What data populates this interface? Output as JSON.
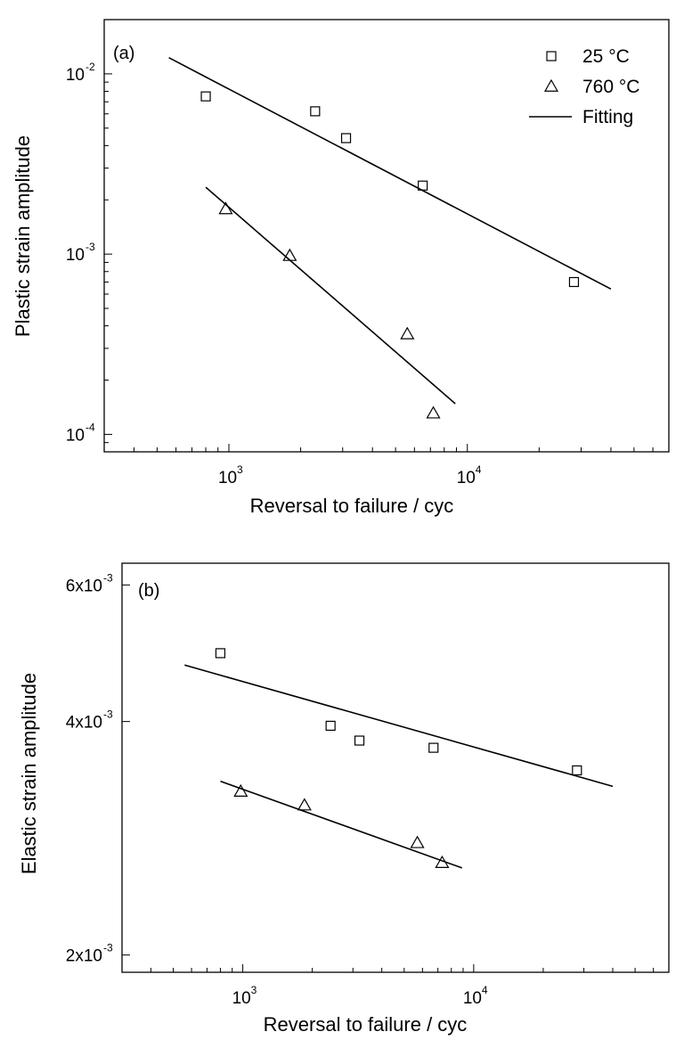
{
  "chart_data": [
    {
      "type": "scatter",
      "panel_label": "(a)",
      "xlabel": "Reversal to failure / cyc",
      "ylabel": "Plastic strain amplitude",
      "x_scale": "log",
      "y_scale": "log",
      "xlim": [
        300,
        70000
      ],
      "ylim": [
        8e-05,
        0.02
      ],
      "x_ticks": [
        {
          "base": "10",
          "exp": "3"
        },
        {
          "base": "10",
          "exp": "4"
        }
      ],
      "y_ticks": [
        {
          "base": "10",
          "exp": "-2"
        },
        {
          "base": "10",
          "exp": "-3"
        },
        {
          "base": "10",
          "exp": "-4"
        }
      ],
      "legend": {
        "position": "top-right",
        "entries": [
          {
            "label": "25 °C",
            "marker": "square"
          },
          {
            "label": "760 °C",
            "marker": "triangle"
          },
          {
            "label": "Fitting",
            "marker": "line"
          }
        ]
      },
      "series": [
        {
          "marker": "square",
          "x": [
            800,
            2300,
            3100,
            6500,
            28000
          ],
          "y": [
            0.0075,
            0.0062,
            0.0044,
            0.0024,
            0.0007
          ],
          "fit": {
            "x": [
              560,
              40000
            ],
            "y": [
              0.0123,
              0.00064
            ]
          }
        },
        {
          "marker": "triangle",
          "x": [
            970,
            1800,
            5600,
            7200
          ],
          "y": [
            0.00178,
            0.00098,
            0.00036,
            0.000131
          ],
          "fit": {
            "x": [
              800,
              8900
            ],
            "y": [
              0.00235,
              0.000148
            ]
          }
        }
      ]
    },
    {
      "type": "scatter",
      "panel_label": "(b)",
      "xlabel": "Reversal to failure / cyc",
      "ylabel": "Elastic strain amplitude",
      "x_scale": "log",
      "y_scale": "log",
      "xlim": [
        300,
        70000
      ],
      "ylim": [
        0.0019,
        0.0064
      ],
      "x_ticks": [
        {
          "base": "10",
          "exp": "3"
        },
        {
          "base": "10",
          "exp": "4"
        }
      ],
      "y_ticks": [
        {
          "base": "6x10",
          "exp": "-3"
        },
        {
          "base": "4x10",
          "exp": "-3"
        },
        {
          "base": "2x10",
          "exp": "-3"
        }
      ],
      "series": [
        {
          "marker": "square",
          "x": [
            800,
            2400,
            3200,
            6700,
            28000
          ],
          "y": [
            0.0049,
            0.00395,
            0.00378,
            0.0037,
            0.00346
          ],
          "fit": {
            "x": [
              560,
              40000
            ],
            "y": [
              0.00473,
              0.0033
            ]
          }
        },
        {
          "marker": "triangle",
          "x": [
            980,
            1850,
            5700,
            7300
          ],
          "y": [
            0.00325,
            0.00312,
            0.00279,
            0.00263
          ],
          "fit": {
            "x": [
              800,
              8900
            ],
            "y": [
              0.00335,
              0.00259
            ]
          }
        }
      ]
    }
  ]
}
